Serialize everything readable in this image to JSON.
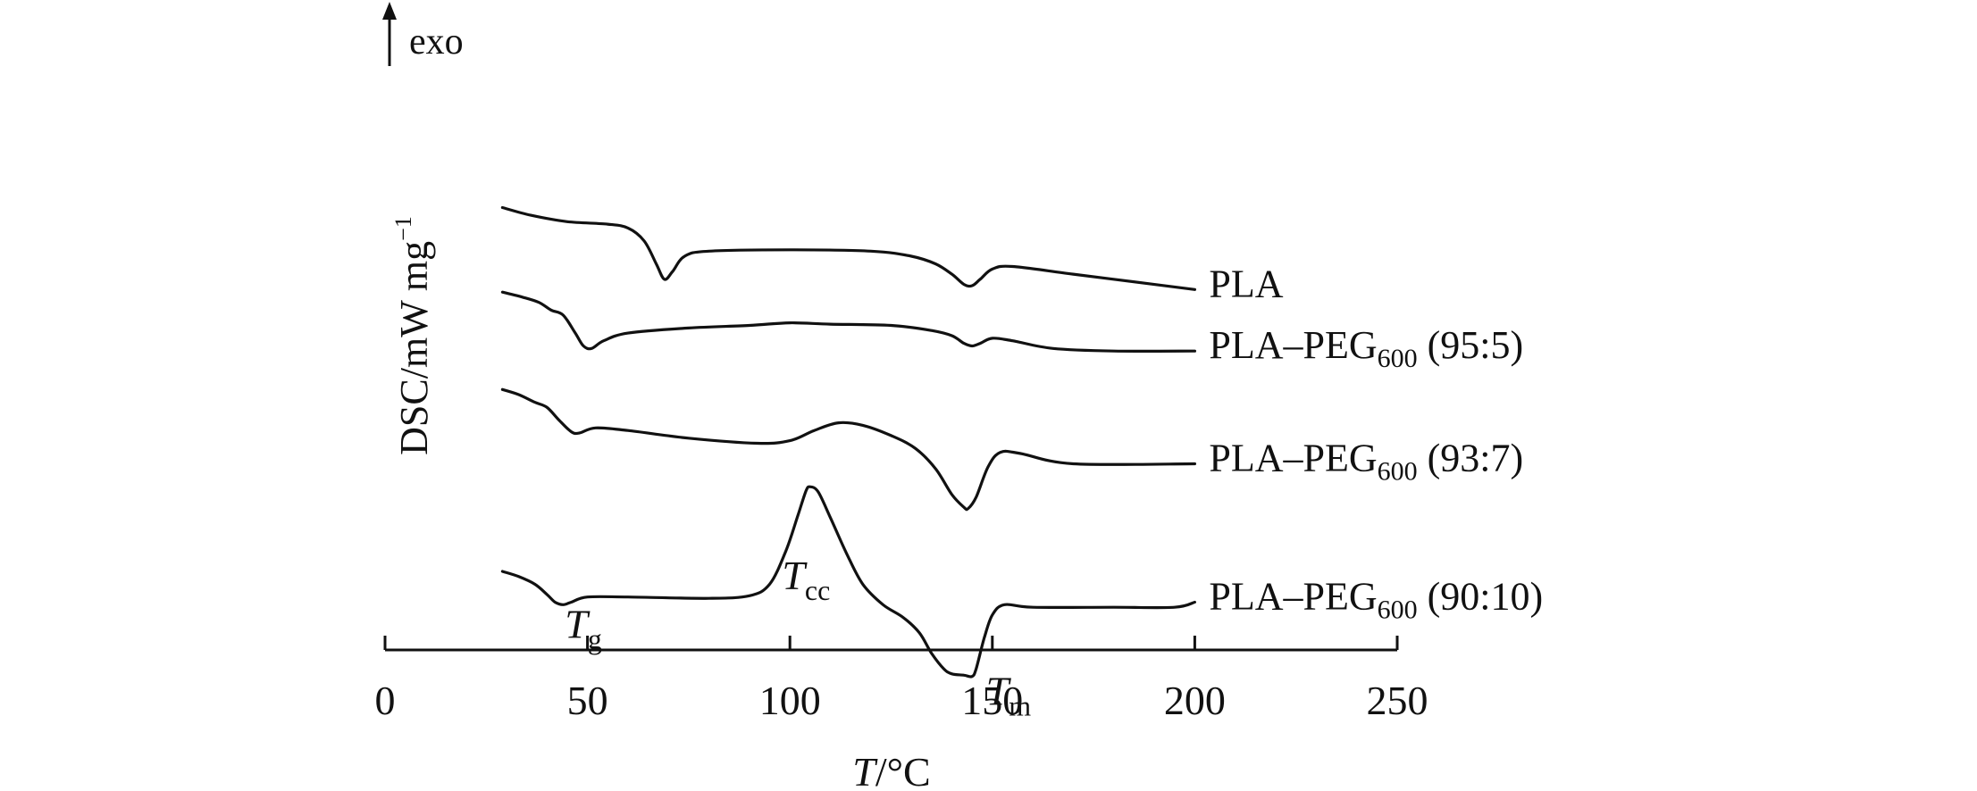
{
  "chart_data": {
    "type": "line",
    "xlabel_italic": "T",
    "xlabel_rest": "/°C",
    "ylabel": "DSC/mW mg",
    "ylabel_sup": "−1",
    "exo_label": "exo",
    "xlim": [
      0,
      250
    ],
    "xticks": [
      0,
      50,
      100,
      150,
      200,
      250
    ],
    "grid": false,
    "series": [
      {
        "name": "PLA",
        "name_sub": "",
        "name_rest": "",
        "points": [
          [
            29,
            96
          ],
          [
            36,
            93
          ],
          [
            45,
            90.5
          ],
          [
            55,
            89.5
          ],
          [
            60,
            88
          ],
          [
            64,
            83
          ],
          [
            67,
            74
          ],
          [
            69,
            68
          ],
          [
            71,
            71
          ],
          [
            74,
            77
          ],
          [
            80,
            79
          ],
          [
            100,
            79.5
          ],
          [
            120,
            79
          ],
          [
            130,
            77
          ],
          [
            136,
            74
          ],
          [
            140,
            70
          ],
          [
            143,
            66
          ],
          [
            145,
            65.5
          ],
          [
            147,
            68
          ],
          [
            150,
            72
          ],
          [
            155,
            73
          ],
          [
            170,
            70
          ],
          [
            190,
            66
          ],
          [
            200,
            64
          ]
        ]
      },
      {
        "name": "PLA–PEG",
        "name_sub": "600",
        "name_rest": " (95:5)",
        "points": [
          [
            29,
            63
          ],
          [
            34,
            61
          ],
          [
            38,
            59
          ],
          [
            41,
            56
          ],
          [
            44,
            54
          ],
          [
            47,
            47
          ],
          [
            49,
            42
          ],
          [
            51,
            41
          ],
          [
            54,
            44
          ],
          [
            60,
            47
          ],
          [
            75,
            49
          ],
          [
            90,
            50
          ],
          [
            100,
            51
          ],
          [
            110,
            50.5
          ],
          [
            125,
            50
          ],
          [
            135,
            48
          ],
          [
            140,
            46
          ],
          [
            143,
            43
          ],
          [
            145,
            42
          ],
          [
            147,
            43
          ],
          [
            150,
            45
          ],
          [
            155,
            44
          ],
          [
            165,
            41
          ],
          [
            180,
            40
          ],
          [
            200,
            40
          ]
        ]
      },
      {
        "name": "PLA–PEG",
        "name_sub": "600",
        "name_rest": " (93:7)",
        "points": [
          [
            29,
            25
          ],
          [
            33,
            23
          ],
          [
            37,
            20
          ],
          [
            40,
            18
          ],
          [
            43,
            13
          ],
          [
            46,
            8.5
          ],
          [
            48,
            8
          ],
          [
            52,
            10
          ],
          [
            60,
            9
          ],
          [
            75,
            6
          ],
          [
            92,
            4
          ],
          [
            100,
            5
          ],
          [
            106,
            9
          ],
          [
            112,
            12
          ],
          [
            118,
            11
          ],
          [
            125,
            7
          ],
          [
            131,
            2
          ],
          [
            136,
            -6
          ],
          [
            140,
            -16
          ],
          [
            143,
            -21
          ],
          [
            144,
            -21.5
          ],
          [
            146,
            -17
          ],
          [
            149,
            -5
          ],
          [
            152,
            0.5
          ],
          [
            157,
            0
          ],
          [
            170,
            -4
          ],
          [
            200,
            -4
          ]
        ]
      },
      {
        "name": "PLA–PEG",
        "name_sub": "600",
        "name_rest": " (90:10)",
        "points": [
          [
            29,
            -46
          ],
          [
            33,
            -48
          ],
          [
            37,
            -51
          ],
          [
            40,
            -55
          ],
          [
            42,
            -58
          ],
          [
            44,
            -59
          ],
          [
            46,
            -58
          ],
          [
            50,
            -56
          ],
          [
            60,
            -56
          ],
          [
            80,
            -56.5
          ],
          [
            90,
            -55.5
          ],
          [
            95,
            -51
          ],
          [
            99,
            -38
          ],
          [
            102,
            -24
          ],
          [
            104,
            -14.5
          ],
          [
            105,
            -13
          ],
          [
            107,
            -15
          ],
          [
            110,
            -25
          ],
          [
            114,
            -39
          ],
          [
            118,
            -51
          ],
          [
            123,
            -59
          ],
          [
            128,
            -64
          ],
          [
            132,
            -70
          ],
          [
            135,
            -78
          ],
          [
            138,
            -84
          ],
          [
            140,
            -86
          ],
          [
            143,
            -86.5
          ],
          [
            145,
            -87
          ],
          [
            146,
            -84
          ],
          [
            148,
            -72
          ],
          [
            150,
            -63
          ],
          [
            153,
            -59
          ],
          [
            160,
            -60
          ],
          [
            180,
            -60
          ],
          [
            195,
            -60
          ],
          [
            200,
            -58
          ]
        ]
      }
    ],
    "annotations": [
      {
        "main": "T",
        "sub": "g",
        "x": 49,
        "y": -72
      },
      {
        "main": "T",
        "sub": "cc",
        "x": 104,
        "y": -53
      },
      {
        "main": "T",
        "sub": "m",
        "x": 154,
        "y": -98
      }
    ]
  }
}
